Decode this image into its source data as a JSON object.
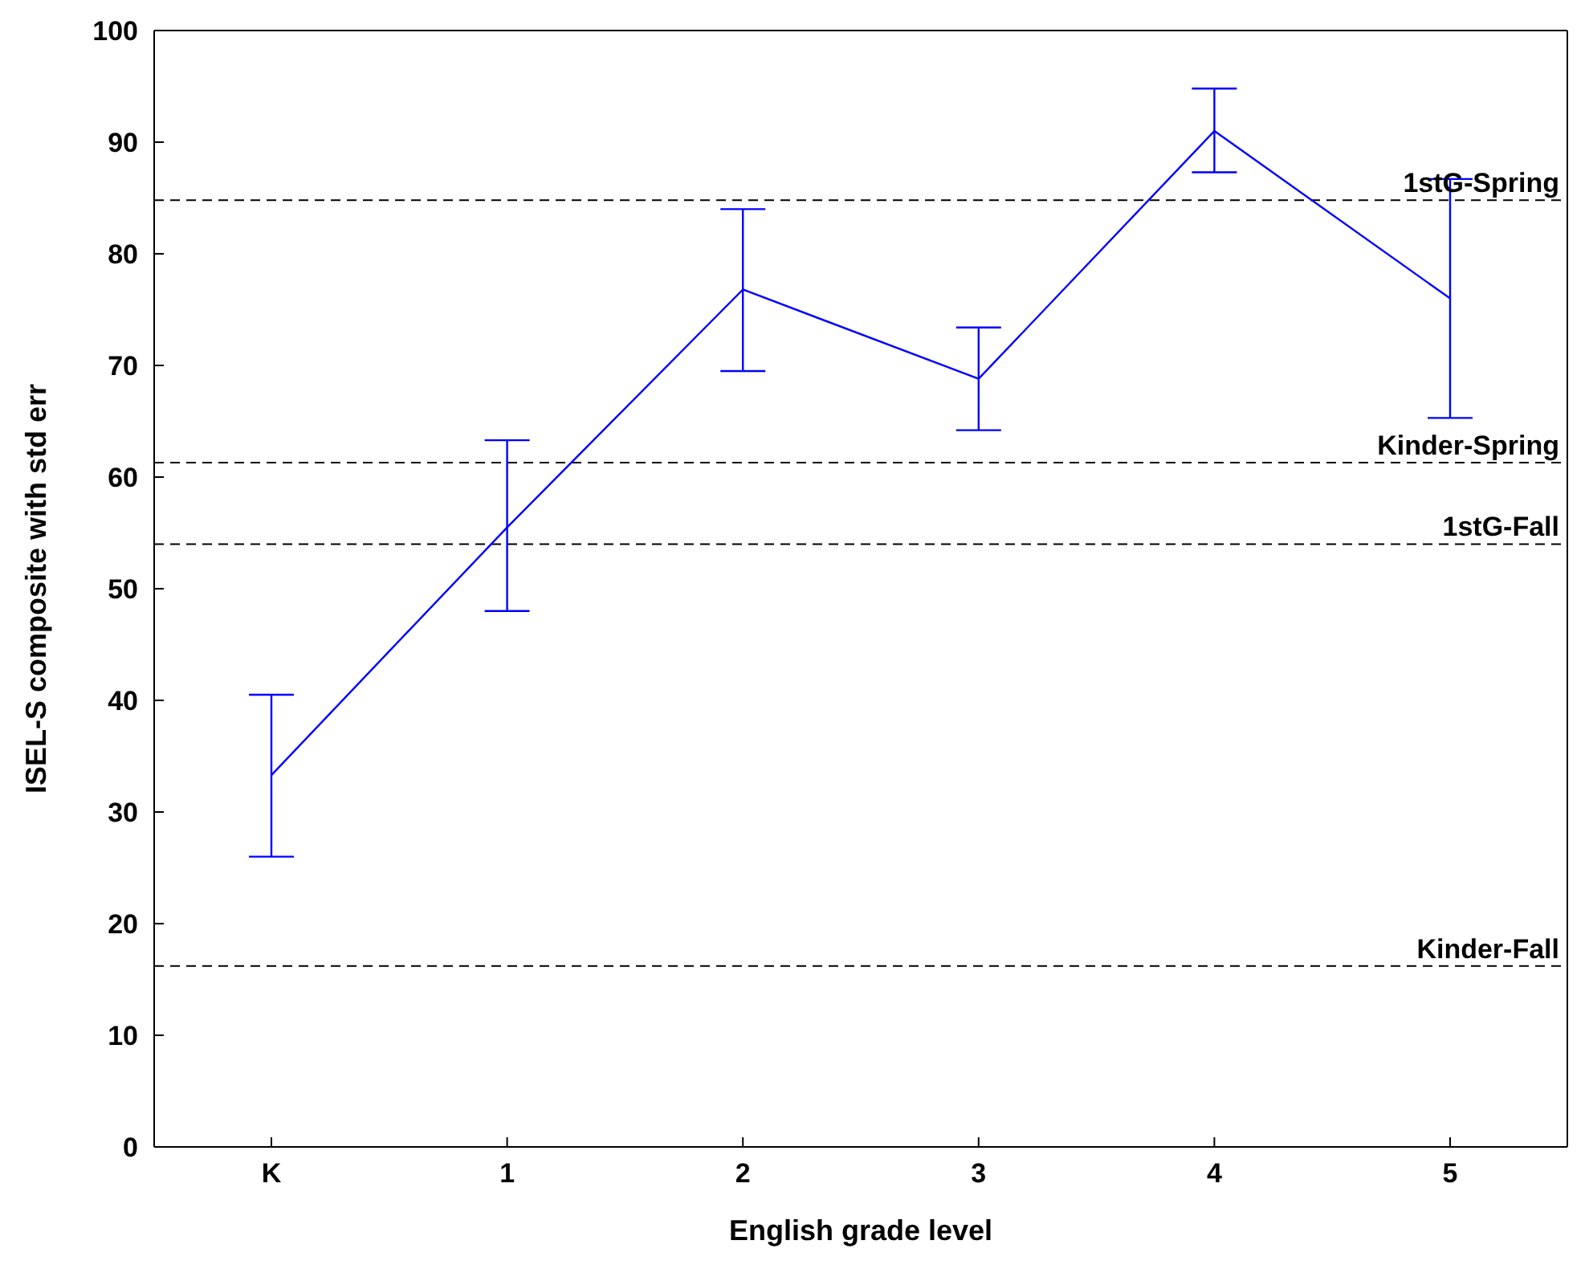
{
  "chart_data": {
    "type": "line",
    "xlabel": "English grade level",
    "ylabel": "ISEL-S composite with std err",
    "categories": [
      "K",
      "1",
      "2",
      "3",
      "4",
      "5"
    ],
    "series": [
      {
        "color": "#0000ff",
        "values": [
          33.3,
          55.5,
          76.8,
          68.8,
          91,
          76
        ],
        "errors": [
          [
            26,
            40.5
          ],
          [
            48,
            63.3
          ],
          [
            69.5,
            84
          ],
          [
            64.2,
            73.4
          ],
          [
            87.3,
            94.8
          ],
          [
            65.3,
            86.7
          ]
        ]
      }
    ],
    "ylim": [
      0,
      100
    ],
    "yticks": [
      0,
      10,
      20,
      30,
      40,
      50,
      60,
      70,
      80,
      90,
      100
    ],
    "marker": "none",
    "line_style": "solid",
    "ref_lines": [
      {
        "axis": "y",
        "value": 84.8,
        "label": "1stG-Spring",
        "color": "#000000",
        "line_style": "dashed"
      },
      {
        "axis": "y",
        "value": 61.3,
        "label": "Kinder-Spring",
        "color": "#000000",
        "line_style": "dashed"
      },
      {
        "axis": "y",
        "value": 54,
        "label": "1stG-Fall",
        "color": "#000000",
        "line_style": "dashed"
      },
      {
        "axis": "y",
        "value": 16.2,
        "label": "Kinder-Fall",
        "color": "#000000",
        "line_style": "dashed"
      }
    ]
  }
}
